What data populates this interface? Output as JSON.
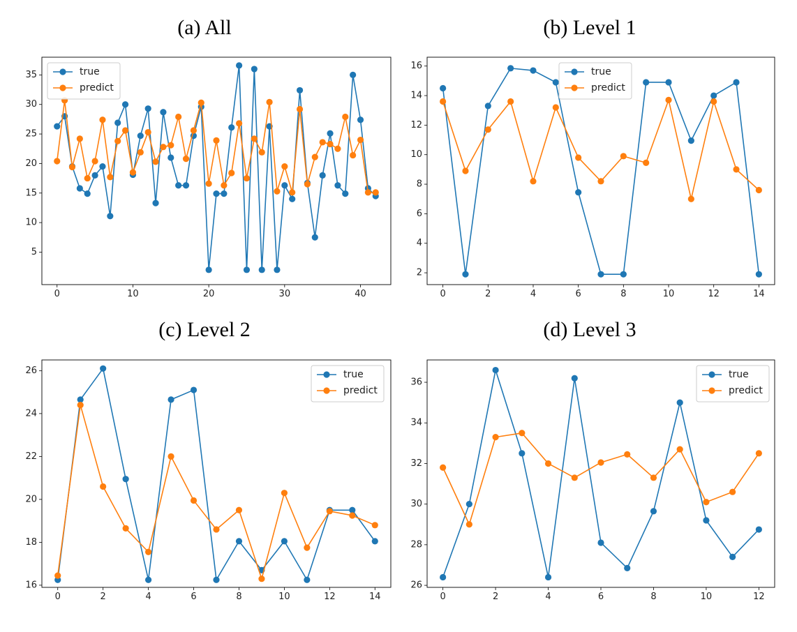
{
  "colors": {
    "true": "#1f77b4",
    "predict": "#ff7f0e"
  },
  "chart_data": [
    {
      "type": "line",
      "title": "(a) All",
      "xlabel": "",
      "ylabel": "",
      "xlim": [
        -2,
        44
      ],
      "ylim": [
        -0.5,
        38
      ],
      "xticks": [
        0,
        10,
        20,
        30,
        40
      ],
      "yticks": [
        5,
        10,
        15,
        20,
        25,
        30,
        35
      ],
      "legend_position": "upper left",
      "x": [
        0,
        1,
        2,
        3,
        4,
        5,
        6,
        7,
        8,
        9,
        10,
        11,
        12,
        13,
        14,
        15,
        16,
        17,
        18,
        19,
        20,
        21,
        22,
        23,
        24,
        25,
        26,
        27,
        28,
        29,
        30,
        31,
        32,
        33,
        34,
        35,
        36,
        37,
        38,
        39,
        40,
        41,
        42
      ],
      "series": [
        {
          "name": "true",
          "values": [
            26.3,
            28.0,
            19.5,
            15.8,
            14.9,
            18.0,
            19.5,
            11.1,
            26.9,
            30.0,
            18.1,
            24.7,
            29.3,
            13.3,
            28.7,
            21.0,
            16.3,
            16.3,
            24.7,
            29.6,
            2.0,
            14.9,
            14.9,
            26.1,
            36.6,
            2.0,
            36.0,
            2.0,
            26.3,
            2.0,
            16.3,
            14.0,
            32.4,
            16.7,
            7.5,
            18.0,
            25.1,
            16.3,
            14.9,
            35.0,
            27.4,
            15.8,
            14.5
          ]
        },
        {
          "name": "predict",
          "values": [
            20.4,
            30.7,
            19.4,
            24.2,
            17.5,
            20.4,
            27.4,
            17.7,
            23.8,
            25.6,
            18.5,
            21.9,
            25.3,
            20.3,
            22.8,
            23.1,
            27.9,
            20.8,
            25.6,
            30.3,
            16.6,
            23.9,
            16.3,
            18.4,
            26.8,
            17.5,
            24.2,
            21.9,
            30.4,
            15.3,
            19.5,
            15.1,
            29.2,
            16.5,
            21.1,
            23.6,
            23.3,
            22.5,
            27.9,
            21.4,
            24.0,
            15.1,
            15.1
          ]
        }
      ]
    },
    {
      "type": "line",
      "title": "(b) Level 1",
      "xlabel": "",
      "ylabel": "",
      "xlim": [
        -0.7,
        14.7
      ],
      "ylim": [
        1.2,
        16.6
      ],
      "xticks": [
        0,
        2,
        4,
        6,
        8,
        10,
        12,
        14
      ],
      "yticks": [
        2,
        4,
        6,
        8,
        10,
        12,
        14,
        16
      ],
      "legend_position": "upper center",
      "x": [
        0,
        1,
        2,
        3,
        4,
        5,
        6,
        7,
        8,
        9,
        10,
        11,
        12,
        13,
        14
      ],
      "series": [
        {
          "name": "true",
          "values": [
            14.5,
            1.9,
            13.3,
            15.85,
            15.7,
            14.9,
            7.45,
            1.9,
            1.9,
            14.9,
            14.9,
            10.95,
            14.0,
            14.9,
            1.9
          ]
        },
        {
          "name": "predict",
          "values": [
            13.6,
            8.9,
            11.7,
            13.6,
            8.2,
            13.2,
            9.8,
            8.2,
            9.9,
            9.45,
            13.7,
            7.0,
            13.6,
            9.0,
            7.6
          ]
        }
      ]
    },
    {
      "type": "line",
      "title": "(c) Level 2",
      "xlabel": "",
      "ylabel": "",
      "xlim": [
        -0.7,
        14.7
      ],
      "ylim": [
        15.9,
        26.5
      ],
      "xticks": [
        0,
        2,
        4,
        6,
        8,
        10,
        12,
        14
      ],
      "yticks": [
        16,
        18,
        20,
        22,
        24,
        26
      ],
      "legend_position": "upper right",
      "x": [
        0,
        1,
        2,
        3,
        4,
        5,
        6,
        7,
        8,
        9,
        10,
        11,
        12,
        13,
        14
      ],
      "series": [
        {
          "name": "true",
          "values": [
            16.25,
            24.65,
            26.1,
            20.95,
            16.25,
            24.65,
            25.1,
            16.25,
            18.05,
            16.7,
            18.05,
            16.25,
            19.5,
            19.5,
            18.05
          ]
        },
        {
          "name": "predict",
          "values": [
            16.45,
            24.4,
            20.6,
            18.65,
            17.55,
            22.0,
            19.95,
            18.6,
            19.5,
            16.3,
            20.3,
            17.75,
            19.45,
            19.25,
            18.8
          ]
        }
      ]
    },
    {
      "type": "line",
      "title": "(d) Level 3",
      "xlabel": "",
      "ylabel": "",
      "xlim": [
        -0.6,
        12.6
      ],
      "ylim": [
        25.9,
        37.1
      ],
      "xticks": [
        0,
        2,
        4,
        6,
        8,
        10,
        12
      ],
      "yticks": [
        26,
        28,
        30,
        32,
        34,
        36
      ],
      "legend_position": "upper right",
      "x": [
        0,
        1,
        2,
        3,
        4,
        5,
        6,
        7,
        8,
        9,
        10,
        11,
        12
      ],
      "series": [
        {
          "name": "true",
          "values": [
            26.4,
            30.0,
            36.6,
            32.5,
            26.4,
            36.2,
            28.1,
            26.85,
            29.65,
            35.0,
            29.2,
            27.4,
            28.75
          ]
        },
        {
          "name": "predict",
          "values": [
            31.8,
            29.0,
            33.3,
            33.5,
            32.0,
            31.3,
            32.05,
            32.45,
            31.3,
            32.7,
            30.1,
            30.6,
            32.5
          ]
        }
      ]
    }
  ]
}
